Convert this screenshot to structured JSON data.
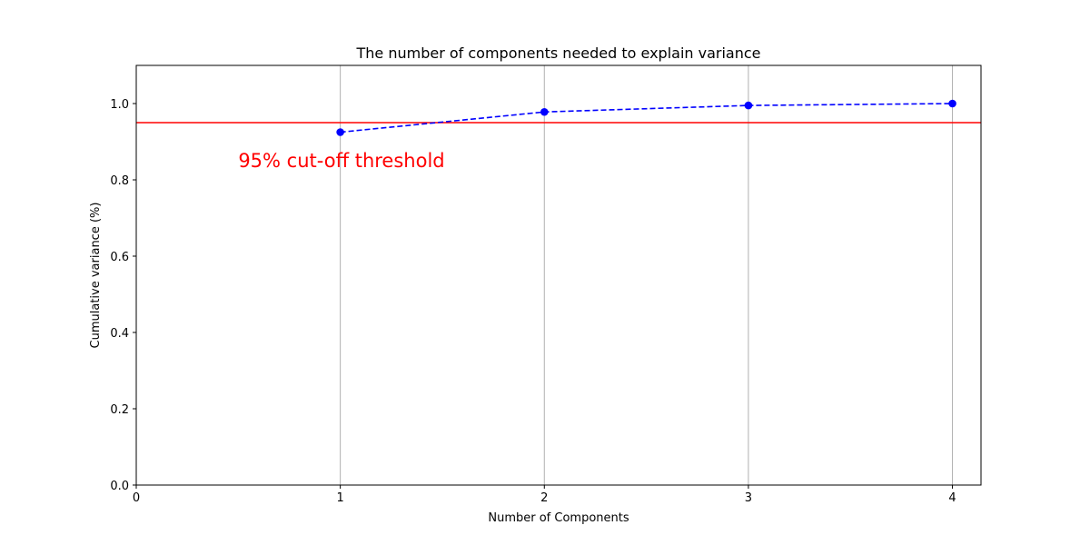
{
  "chart_data": {
    "type": "line",
    "title": "The number of components needed to explain variance",
    "xlabel": "Number of Components",
    "ylabel": "Cumulative variance (%)",
    "xlim": [
      0,
      4.14
    ],
    "ylim": [
      0,
      1.1
    ],
    "xticks": [
      0,
      1,
      2,
      3,
      4
    ],
    "yticks": [
      0.0,
      0.2,
      0.4,
      0.6,
      0.8,
      1.0
    ],
    "xtick_labels": [
      "0",
      "1",
      "2",
      "3",
      "4"
    ],
    "ytick_labels": [
      "0.0",
      "0.2",
      "0.4",
      "0.6",
      "0.8",
      "1.0"
    ],
    "grid": "vertical",
    "series": [
      {
        "x": [
          1,
          2,
          3,
          4
        ],
        "values": [
          0.925,
          0.978,
          0.995,
          1.0
        ],
        "color": "#0000ff",
        "line_style": "dashed",
        "marker": "circle"
      }
    ],
    "threshold": {
      "value": 0.95,
      "color": "#ff0000",
      "label": "95% cut-off threshold",
      "label_x": 0.5,
      "label_y": 0.85
    }
  }
}
